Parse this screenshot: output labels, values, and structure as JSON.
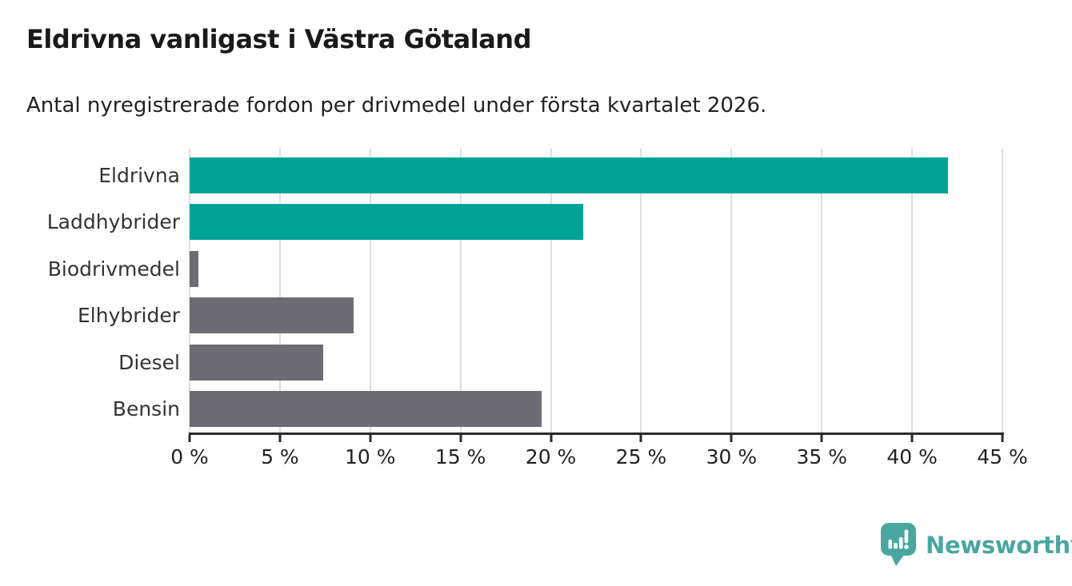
{
  "header": {
    "title": "Eldrivna vanligast i Västra Götaland",
    "subtitle": "Antal nyregistrerade fordon per drivmedel under första kvartalet 2026."
  },
  "chart_data": {
    "type": "bar",
    "orientation": "horizontal",
    "title": "Eldrivna vanligast i Västra Götaland",
    "subtitle": "Antal nyregistrerade fordon per drivmedel under första kvartalet 2026.",
    "categories": [
      "Eldrivna",
      "Laddhybrider",
      "Biodrivmedel",
      "Elhybrider",
      "Diesel",
      "Bensin"
    ],
    "values": [
      42.0,
      21.8,
      0.5,
      9.1,
      7.4,
      19.5
    ],
    "unit": "%",
    "xlim": [
      0,
      45
    ],
    "x_tick_values": [
      0,
      5,
      10,
      15,
      20,
      25,
      30,
      35,
      40,
      45
    ],
    "x_tick_labels": [
      "0 %",
      "5 %",
      "10 %",
      "15 %",
      "20 %",
      "25 %",
      "30 %",
      "35 %",
      "40 %",
      "45 %"
    ],
    "grid": "vertical",
    "legend": "none",
    "bar_colors": [
      "#00a396",
      "#00a396",
      "#6c6c72",
      "#6c6c72",
      "#6c6c72",
      "#6c6c72"
    ],
    "colors": {
      "highlight_bar": "#00a396",
      "default_bar": "#6c6c72",
      "gridline": "#dedede",
      "axis": "#2b2b2b"
    }
  },
  "footer": {
    "brand": "Newsworthy",
    "brand_color": "#4aa7a0",
    "logo_icon": "speech-bubble-bar-chart-icon"
  }
}
